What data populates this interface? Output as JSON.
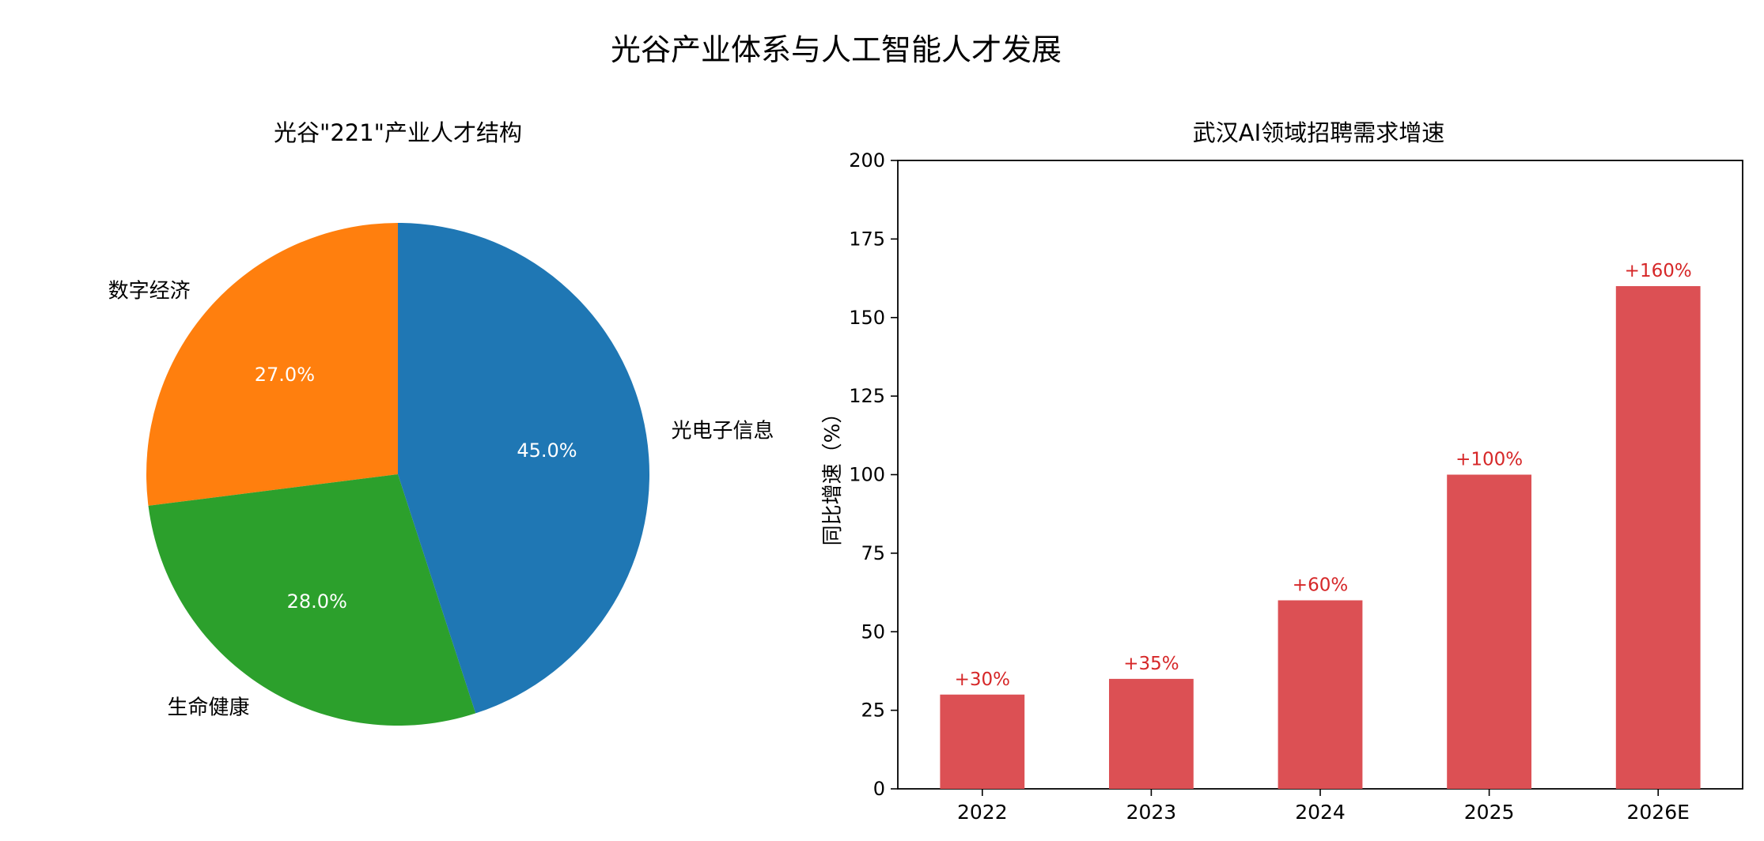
{
  "suptitle": "光谷产业体系与人工智能人才发展",
  "chart_data": [
    {
      "type": "pie",
      "title": "光谷\"221\"产业人才结构",
      "slices": [
        {
          "label": "数字经济",
          "value": 27.0,
          "pct_label": "27.0%",
          "color": "#ff7f0e"
        },
        {
          "label": "生命健康",
          "value": 28.0,
          "pct_label": "28.0%",
          "color": "#2ca02c"
        },
        {
          "label": "光电子信息",
          "value": 45.0,
          "pct_label": "45.0%",
          "color": "#1f77b4"
        }
      ]
    },
    {
      "type": "bar",
      "title": "武汉AI领域招聘需求增速",
      "categories": [
        "2022",
        "2023",
        "2024",
        "2025",
        "2026E"
      ],
      "values": [
        30,
        35,
        60,
        100,
        160
      ],
      "value_labels": [
        "+30%",
        "+35%",
        "+60%",
        "+100%",
        "+160%"
      ],
      "ylabel": "同比增速（%）",
      "xlabel": "",
      "ylim": [
        0,
        200
      ],
      "yticks": [
        0,
        25,
        50,
        75,
        100,
        125,
        150,
        175,
        200
      ],
      "bar_color": "#dc5054",
      "label_color": "#d62728"
    }
  ]
}
